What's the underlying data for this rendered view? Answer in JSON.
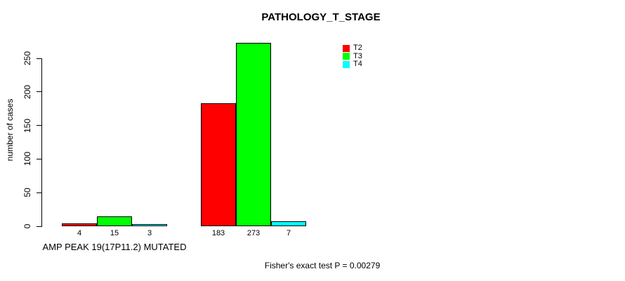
{
  "chart_data": {
    "type": "bar",
    "title": "PATHOLOGY_T_STAGE",
    "ylabel": "number of cases",
    "xlabel": "",
    "categories": [
      "AMP PEAK 19(17P11.2) MUTATED",
      ""
    ],
    "series": [
      {
        "name": "T2",
        "color": "#FF0000",
        "values": [
          4,
          183
        ]
      },
      {
        "name": "T3",
        "color": "#00FF00",
        "values": [
          15,
          273
        ]
      },
      {
        "name": "T4",
        "color": "#00FFFF",
        "values": [
          3,
          7
        ]
      }
    ],
    "bar_value_labels": [
      [
        "4",
        "15",
        "3"
      ],
      [
        "183",
        "273",
        "7"
      ]
    ],
    "ylim": [
      0,
      250
    ],
    "yticks": [
      "0",
      "50",
      "100",
      "150",
      "200",
      "250"
    ],
    "grid": false,
    "legend_position": "top-right",
    "legend_entries": [
      "T2",
      "T3",
      "T4"
    ],
    "footnote": "Fisher's exact test P = 0.00279",
    "axis_color": "#000000",
    "bar_border_color": "#000000"
  }
}
